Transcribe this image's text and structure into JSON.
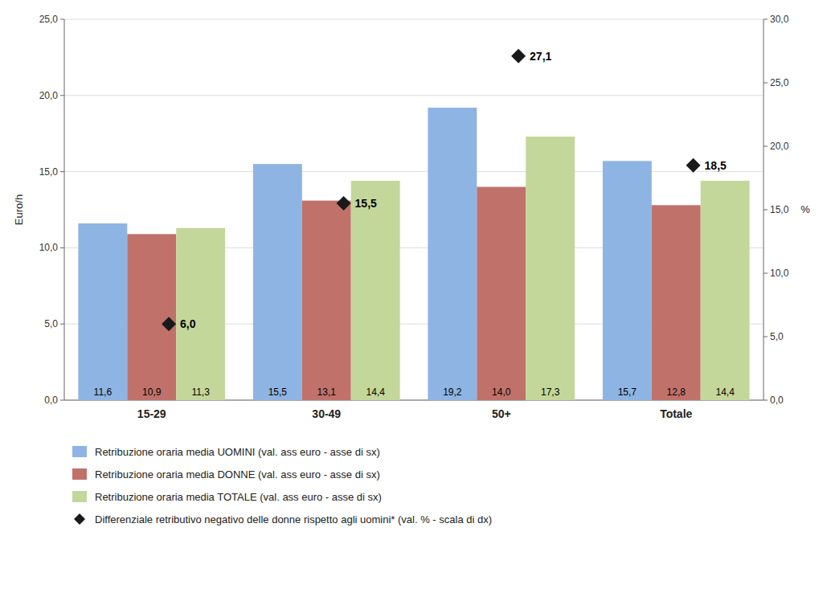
{
  "chart_data": {
    "type": "bar",
    "categories": [
      "15-29",
      "30-49",
      "50+",
      "Totale"
    ],
    "series": [
      {
        "name": "Retribuzione oraria media UOMINI (val. ass euro - asse di sx)",
        "color": "#8EB4E3",
        "values": [
          11.6,
          15.5,
          19.2,
          15.7
        ],
        "value_labels": [
          "11,6",
          "15,5",
          "19,2",
          "15,7"
        ]
      },
      {
        "name": "Retribuzione oraria media DONNE (val. ass euro - asse di sx)",
        "color": "#C0726A",
        "values": [
          10.9,
          13.1,
          14.0,
          12.8
        ],
        "value_labels": [
          "10,9",
          "13,1",
          "14,0",
          "12,8"
        ]
      },
      {
        "name": "Retribuzione oraria media TOTALE (val. ass euro - asse di sx)",
        "color": "#C4D79B",
        "values": [
          11.3,
          14.4,
          17.3,
          14.4
        ],
        "value_labels": [
          "11,3",
          "14,4",
          "17,3",
          "14,4"
        ]
      },
      {
        "name": "Differenziale retributivo negativo delle donne rispetto agli uomini* (val. % - scala di dx)",
        "type": "scatter",
        "marker": "diamond",
        "axis": "y2",
        "color": "#1A1A1A",
        "values": [
          6.0,
          15.5,
          27.1,
          18.5
        ],
        "value_labels": [
          "6,0",
          "15,5",
          "27,1",
          "18,5"
        ]
      }
    ],
    "ylabel": "Euro/h",
    "y2label": "%",
    "ylim": [
      0.0,
      25.0
    ],
    "yticks": [
      {
        "value": 0.0,
        "label": "0,0"
      },
      {
        "value": 5.0,
        "label": "5,0"
      },
      {
        "value": 10.0,
        "label": "10,0"
      },
      {
        "value": 15.0,
        "label": "15,0"
      },
      {
        "value": 20.0,
        "label": "20,0"
      },
      {
        "value": 25.0,
        "label": "25,0"
      }
    ],
    "y2lim": [
      0.0,
      30.0
    ],
    "y2ticks": [
      {
        "value": 0.0,
        "label": "0,0"
      },
      {
        "value": 5.0,
        "label": "5,0"
      },
      {
        "value": 10.0,
        "label": "10,0"
      },
      {
        "value": 15.0,
        "label": "15,0"
      },
      {
        "value": 20.0,
        "label": "20,0"
      },
      {
        "value": 25.0,
        "label": "25,0"
      },
      {
        "value": 30.0,
        "label": "30,0"
      }
    ],
    "grid": true,
    "data_labels": true,
    "legend": "bottom"
  }
}
